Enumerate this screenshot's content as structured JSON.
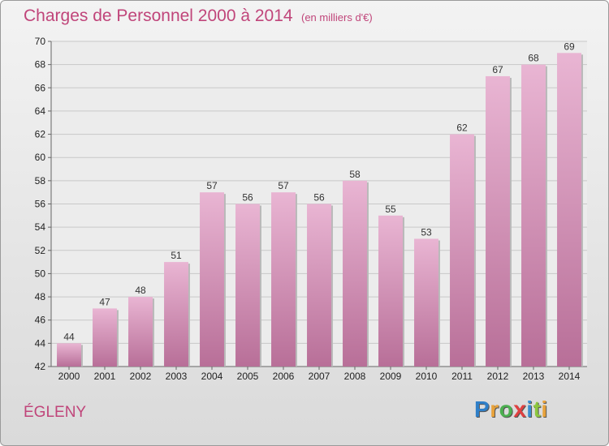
{
  "header": {
    "title": "Charges de Personnel 2000 à 2014",
    "subtitle": "(en milliers d'€)"
  },
  "footer": {
    "town": "ÉGLENY",
    "logo_letters": [
      "P",
      "r",
      "o",
      "x",
      "i",
      "t",
      "i"
    ],
    "logo_colors": [
      "#2f7fc8",
      "#e8a23a",
      "#4caf50",
      "#e04040",
      "#3a8fd0",
      "#8cc63f",
      "#e8a23a"
    ]
  },
  "chart_data": {
    "type": "bar",
    "title": "Charges de Personnel 2000 à 2014",
    "subtitle": "(en milliers d'€)",
    "xlabel": "",
    "ylabel": "",
    "categories": [
      "2000",
      "2001",
      "2002",
      "2003",
      "2004",
      "2005",
      "2006",
      "2007",
      "2008",
      "2009",
      "2010",
      "2011",
      "2012",
      "2013",
      "2014"
    ],
    "values": [
      44,
      47,
      48,
      51,
      57,
      56,
      57,
      56,
      58,
      55,
      53,
      62,
      67,
      68,
      69
    ],
    "ylim": [
      42,
      70
    ],
    "yticks": [
      42,
      44,
      46,
      48,
      50,
      52,
      54,
      56,
      58,
      60,
      62,
      64,
      66,
      68,
      70
    ],
    "grid": true,
    "bar_color": "#d98fb8",
    "bar_color_light": "#e9b5d3"
  }
}
